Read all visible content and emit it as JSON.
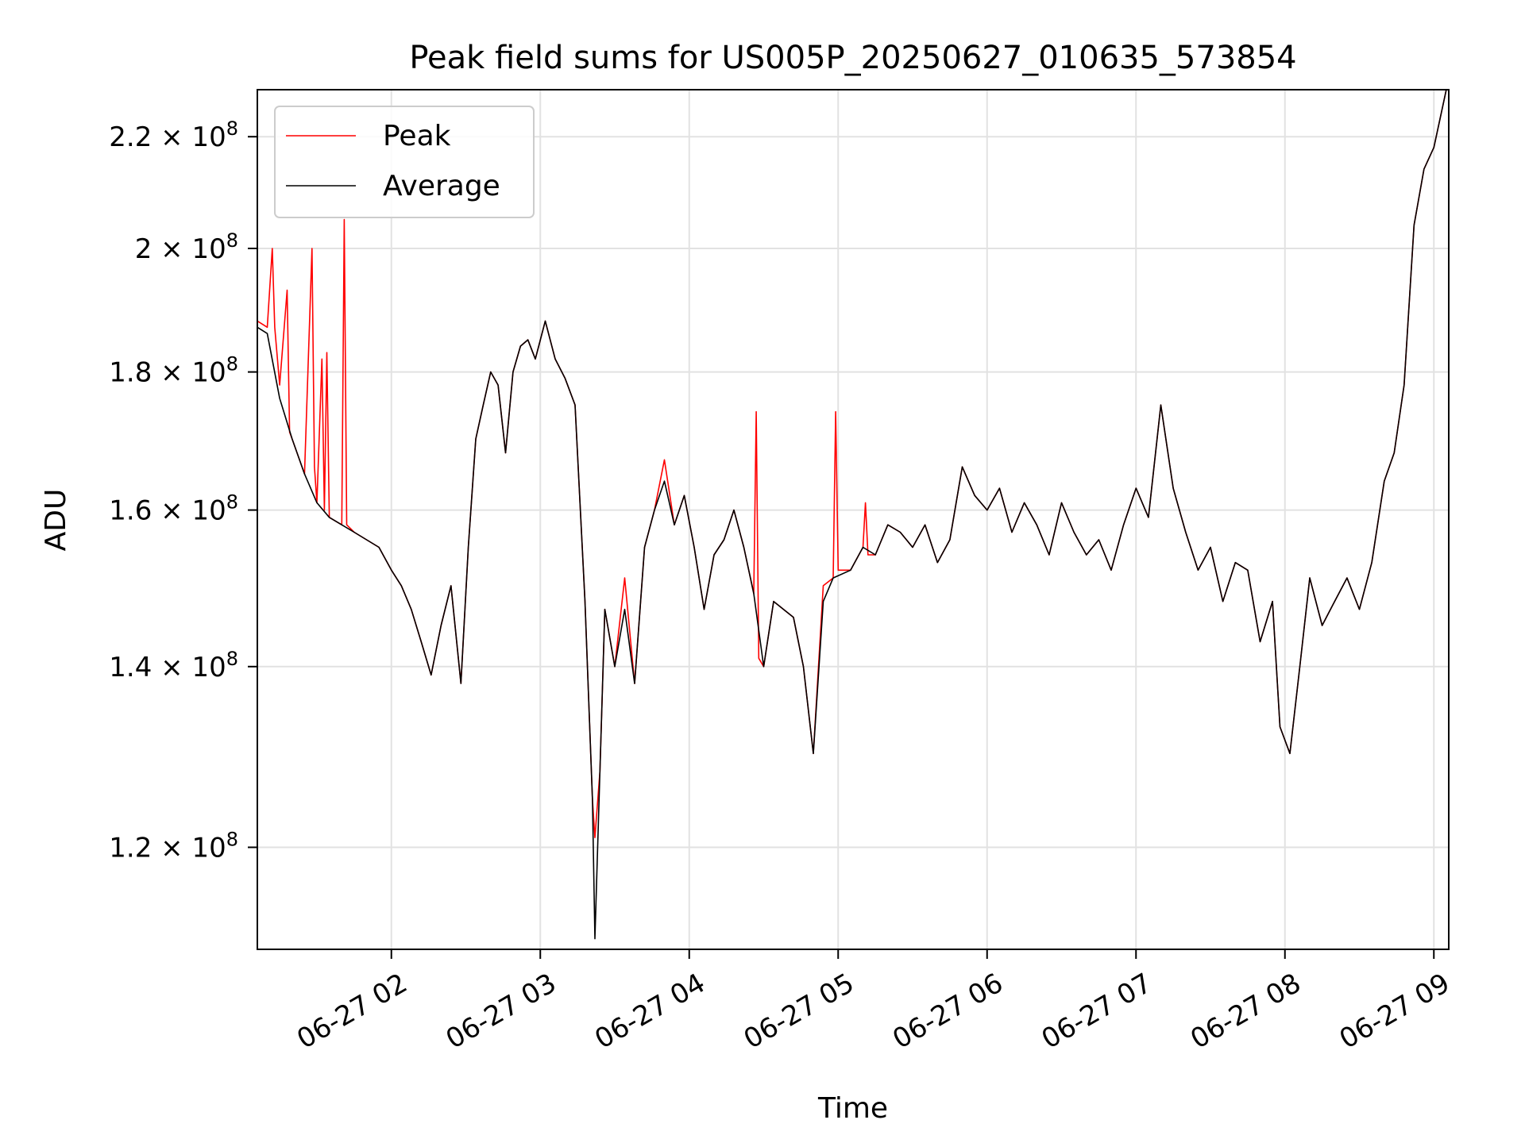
{
  "chart_data": {
    "type": "line",
    "title": "Peak field sums for US005P_20250627_010635_573854",
    "xlabel": "Time",
    "ylabel": "ADU",
    "y_scale": "log",
    "ylim": [
      110000000,
      229000000
    ],
    "xlim": [
      "2025-06-27 01:06",
      "2025-06-27 09:06"
    ],
    "grid": true,
    "legend_position": "top-left",
    "x_ticks": [
      "2025-06-27 02:00",
      "2025-06-27 03:00",
      "2025-06-27 04:00",
      "2025-06-27 05:00",
      "2025-06-27 06:00",
      "2025-06-27 07:00",
      "2025-06-27 08:00",
      "2025-06-27 09:00"
    ],
    "x_tick_labels": [
      "06-27 02",
      "06-27 03",
      "06-27 04",
      "06-27 05",
      "06-27 06",
      "06-27 07",
      "06-27 08",
      "06-27 09"
    ],
    "y_ticks": [
      120000000,
      140000000,
      160000000,
      180000000,
      200000000,
      220000000
    ],
    "y_tick_mantissas": [
      "1.2",
      "1.4",
      "1.6",
      "1.8",
      "2",
      "2.2"
    ],
    "y_tick_exponent_base": "10",
    "y_tick_exponent": "8",
    "series": [
      {
        "name": "Average",
        "color": "#000000",
        "x": [
          "2025-06-27 01:06",
          "2025-06-27 01:10",
          "2025-06-27 01:15",
          "2025-06-27 01:20",
          "2025-06-27 01:25",
          "2025-06-27 01:30",
          "2025-06-27 01:35",
          "2025-06-27 01:40",
          "2025-06-27 01:45",
          "2025-06-27 01:50",
          "2025-06-27 01:55",
          "2025-06-27 02:00",
          "2025-06-27 02:04",
          "2025-06-27 02:08",
          "2025-06-27 02:12",
          "2025-06-27 02:16",
          "2025-06-27 02:20",
          "2025-06-27 02:24",
          "2025-06-27 02:28",
          "2025-06-27 02:31",
          "2025-06-27 02:34",
          "2025-06-27 02:37",
          "2025-06-27 02:40",
          "2025-06-27 02:43",
          "2025-06-27 02:46",
          "2025-06-27 02:49",
          "2025-06-27 02:52",
          "2025-06-27 02:55",
          "2025-06-27 02:58",
          "2025-06-27 03:02",
          "2025-06-27 03:06",
          "2025-06-27 03:10",
          "2025-06-27 03:14",
          "2025-06-27 03:18",
          "2025-06-27 03:21",
          "2025-06-27 03:22",
          "2025-06-27 03:24",
          "2025-06-27 03:26",
          "2025-06-27 03:30",
          "2025-06-27 03:34",
          "2025-06-27 03:38",
          "2025-06-27 03:42",
          "2025-06-27 03:46",
          "2025-06-27 03:50",
          "2025-06-27 03:54",
          "2025-06-27 03:58",
          "2025-06-27 04:02",
          "2025-06-27 04:06",
          "2025-06-27 04:10",
          "2025-06-27 04:14",
          "2025-06-27 04:18",
          "2025-06-27 04:22",
          "2025-06-27 04:26",
          "2025-06-27 04:30",
          "2025-06-27 04:34",
          "2025-06-27 04:38",
          "2025-06-27 04:42",
          "2025-06-27 04:46",
          "2025-06-27 04:50",
          "2025-06-27 04:54",
          "2025-06-27 04:58",
          "2025-06-27 05:05",
          "2025-06-27 05:10",
          "2025-06-27 05:15",
          "2025-06-27 05:20",
          "2025-06-27 05:25",
          "2025-06-27 05:30",
          "2025-06-27 05:35",
          "2025-06-27 05:40",
          "2025-06-27 05:45",
          "2025-06-27 05:50",
          "2025-06-27 05:55",
          "2025-06-27 06:00",
          "2025-06-27 06:05",
          "2025-06-27 06:10",
          "2025-06-27 06:15",
          "2025-06-27 06:20",
          "2025-06-27 06:25",
          "2025-06-27 06:30",
          "2025-06-27 06:35",
          "2025-06-27 06:40",
          "2025-06-27 06:45",
          "2025-06-27 06:50",
          "2025-06-27 06:55",
          "2025-06-27 07:00",
          "2025-06-27 07:05",
          "2025-06-27 07:10",
          "2025-06-27 07:15",
          "2025-06-27 07:20",
          "2025-06-27 07:25",
          "2025-06-27 07:30",
          "2025-06-27 07:35",
          "2025-06-27 07:40",
          "2025-06-27 07:45",
          "2025-06-27 07:50",
          "2025-06-27 07:55",
          "2025-06-27 07:58",
          "2025-06-27 08:02",
          "2025-06-27 08:06",
          "2025-06-27 08:10",
          "2025-06-27 08:15",
          "2025-06-27 08:20",
          "2025-06-27 08:25",
          "2025-06-27 08:30",
          "2025-06-27 08:35",
          "2025-06-27 08:40",
          "2025-06-27 08:44",
          "2025-06-27 08:48",
          "2025-06-27 08:52",
          "2025-06-27 08:56",
          "2025-06-27 09:00",
          "2025-06-27 09:05"
        ],
        "y": [
          187000000,
          186000000,
          176000000,
          170000000,
          165000000,
          161000000,
          159000000,
          158000000,
          157000000,
          156000000,
          155000000,
          152000000,
          150000000,
          147000000,
          143000000,
          139000000,
          145000000,
          150000000,
          138000000,
          155000000,
          170000000,
          175000000,
          180000000,
          178000000,
          168000000,
          180000000,
          184000000,
          185000000,
          182000000,
          188000000,
          182000000,
          179000000,
          175000000,
          148000000,
          125000000,
          111000000,
          128000000,
          147000000,
          140000000,
          147000000,
          138000000,
          155000000,
          160000000,
          164000000,
          158000000,
          162000000,
          155000000,
          147000000,
          154000000,
          156000000,
          160000000,
          155000000,
          149000000,
          140000000,
          148000000,
          147000000,
          146000000,
          140000000,
          130000000,
          148000000,
          151000000,
          152000000,
          155000000,
          154000000,
          158000000,
          157000000,
          155000000,
          158000000,
          153000000,
          156000000,
          166000000,
          162000000,
          160000000,
          163000000,
          157000000,
          161000000,
          158000000,
          154000000,
          161000000,
          157000000,
          154000000,
          156000000,
          152000000,
          158000000,
          163000000,
          159000000,
          175000000,
          163000000,
          157000000,
          152000000,
          155000000,
          148000000,
          153000000,
          152000000,
          143000000,
          148000000,
          133000000,
          130000000,
          140000000,
          151000000,
          145000000,
          148000000,
          151000000,
          147000000,
          153000000,
          164000000,
          168000000,
          178000000,
          204000000,
          214000000,
          218000000,
          229000000
        ]
      },
      {
        "name": "Peak",
        "color": "#ff0000",
        "x": [
          "2025-06-27 01:06",
          "2025-06-27 01:10",
          "2025-06-27 01:12",
          "2025-06-27 01:13",
          "2025-06-27 01:15",
          "2025-06-27 01:18",
          "2025-06-27 01:19",
          "2025-06-27 01:20",
          "2025-06-27 01:25",
          "2025-06-27 01:28",
          "2025-06-27 01:29",
          "2025-06-27 01:30",
          "2025-06-27 01:32",
          "2025-06-27 01:33",
          "2025-06-27 01:34",
          "2025-06-27 01:35",
          "2025-06-27 01:40",
          "2025-06-27 01:41",
          "2025-06-27 01:42",
          "2025-06-27 01:45",
          "2025-06-27 01:50",
          "2025-06-27 01:55",
          "2025-06-27 02:00",
          "2025-06-27 02:04",
          "2025-06-27 02:08",
          "2025-06-27 02:12",
          "2025-06-27 02:16",
          "2025-06-27 02:20",
          "2025-06-27 02:24",
          "2025-06-27 02:28",
          "2025-06-27 02:31",
          "2025-06-27 02:34",
          "2025-06-27 02:37",
          "2025-06-27 02:40",
          "2025-06-27 02:43",
          "2025-06-27 02:46",
          "2025-06-27 02:49",
          "2025-06-27 02:52",
          "2025-06-27 02:55",
          "2025-06-27 02:58",
          "2025-06-27 03:02",
          "2025-06-27 03:06",
          "2025-06-27 03:10",
          "2025-06-27 03:14",
          "2025-06-27 03:18",
          "2025-06-27 03:21",
          "2025-06-27 03:22",
          "2025-06-27 03:24",
          "2025-06-27 03:26",
          "2025-06-27 03:30",
          "2025-06-27 03:34",
          "2025-06-27 03:38",
          "2025-06-27 03:42",
          "2025-06-27 03:46",
          "2025-06-27 03:50",
          "2025-06-27 03:54",
          "2025-06-27 03:58",
          "2025-06-27 04:02",
          "2025-06-27 04:06",
          "2025-06-27 04:10",
          "2025-06-27 04:14",
          "2025-06-27 04:18",
          "2025-06-27 04:22",
          "2025-06-27 04:26",
          "2025-06-27 04:27",
          "2025-06-27 04:28",
          "2025-06-27 04:30",
          "2025-06-27 04:34",
          "2025-06-27 04:38",
          "2025-06-27 04:42",
          "2025-06-27 04:46",
          "2025-06-27 04:50",
          "2025-06-27 04:54",
          "2025-06-27 04:58",
          "2025-06-27 04:59",
          "2025-06-27 05:00",
          "2025-06-27 05:05",
          "2025-06-27 05:10",
          "2025-06-27 05:11",
          "2025-06-27 05:12",
          "2025-06-27 05:15",
          "2025-06-27 05:20",
          "2025-06-27 05:25",
          "2025-06-27 05:30",
          "2025-06-27 05:35",
          "2025-06-27 05:40",
          "2025-06-27 05:45",
          "2025-06-27 05:50",
          "2025-06-27 05:55",
          "2025-06-27 06:00",
          "2025-06-27 06:05",
          "2025-06-27 06:10",
          "2025-06-27 06:15",
          "2025-06-27 06:20",
          "2025-06-27 06:25",
          "2025-06-27 06:30",
          "2025-06-27 06:35",
          "2025-06-27 06:40",
          "2025-06-27 06:45",
          "2025-06-27 06:50",
          "2025-06-27 06:55",
          "2025-06-27 07:00",
          "2025-06-27 07:05",
          "2025-06-27 07:10",
          "2025-06-27 07:15",
          "2025-06-27 07:20",
          "2025-06-27 07:25",
          "2025-06-27 07:30",
          "2025-06-27 07:35",
          "2025-06-27 07:40",
          "2025-06-27 07:45",
          "2025-06-27 07:50",
          "2025-06-27 07:55",
          "2025-06-27 07:58",
          "2025-06-27 08:02",
          "2025-06-27 08:06",
          "2025-06-27 08:10",
          "2025-06-27 08:15",
          "2025-06-27 08:20",
          "2025-06-27 08:25",
          "2025-06-27 08:30",
          "2025-06-27 08:35",
          "2025-06-27 08:40",
          "2025-06-27 08:44",
          "2025-06-27 08:48",
          "2025-06-27 08:52",
          "2025-06-27 08:56",
          "2025-06-27 09:00",
          "2025-06-27 09:05"
        ],
        "y": [
          188000000,
          187000000,
          200000000,
          187000000,
          178000000,
          193000000,
          171000000,
          170000000,
          165000000,
          200000000,
          166000000,
          161000000,
          182000000,
          160000000,
          183000000,
          159000000,
          158000000,
          205000000,
          158000000,
          157000000,
          156000000,
          155000000,
          152000000,
          150000000,
          147000000,
          143000000,
          139000000,
          145000000,
          150000000,
          138000000,
          155000000,
          170000000,
          175000000,
          180000000,
          178000000,
          168000000,
          180000000,
          184000000,
          185000000,
          182000000,
          188000000,
          182000000,
          179000000,
          175000000,
          148000000,
          125000000,
          121000000,
          128000000,
          147000000,
          140000000,
          151000000,
          138000000,
          155000000,
          160000000,
          167000000,
          158000000,
          162000000,
          155000000,
          147000000,
          154000000,
          156000000,
          160000000,
          155000000,
          149000000,
          174000000,
          141000000,
          140000000,
          148000000,
          147000000,
          146000000,
          140000000,
          130000000,
          150000000,
          151000000,
          174000000,
          152000000,
          152000000,
          155000000,
          161000000,
          154000000,
          154000000,
          158000000,
          157000000,
          155000000,
          158000000,
          153000000,
          156000000,
          166000000,
          162000000,
          160000000,
          163000000,
          157000000,
          161000000,
          158000000,
          154000000,
          161000000,
          157000000,
          154000000,
          156000000,
          152000000,
          158000000,
          163000000,
          159000000,
          175000000,
          163000000,
          157000000,
          152000000,
          155000000,
          148000000,
          153000000,
          152000000,
          143000000,
          148000000,
          133000000,
          130000000,
          140000000,
          151000000,
          145000000,
          148000000,
          151000000,
          147000000,
          153000000,
          164000000,
          168000000,
          178000000,
          204000000,
          214000000,
          218000000,
          229000000
        ]
      }
    ]
  }
}
